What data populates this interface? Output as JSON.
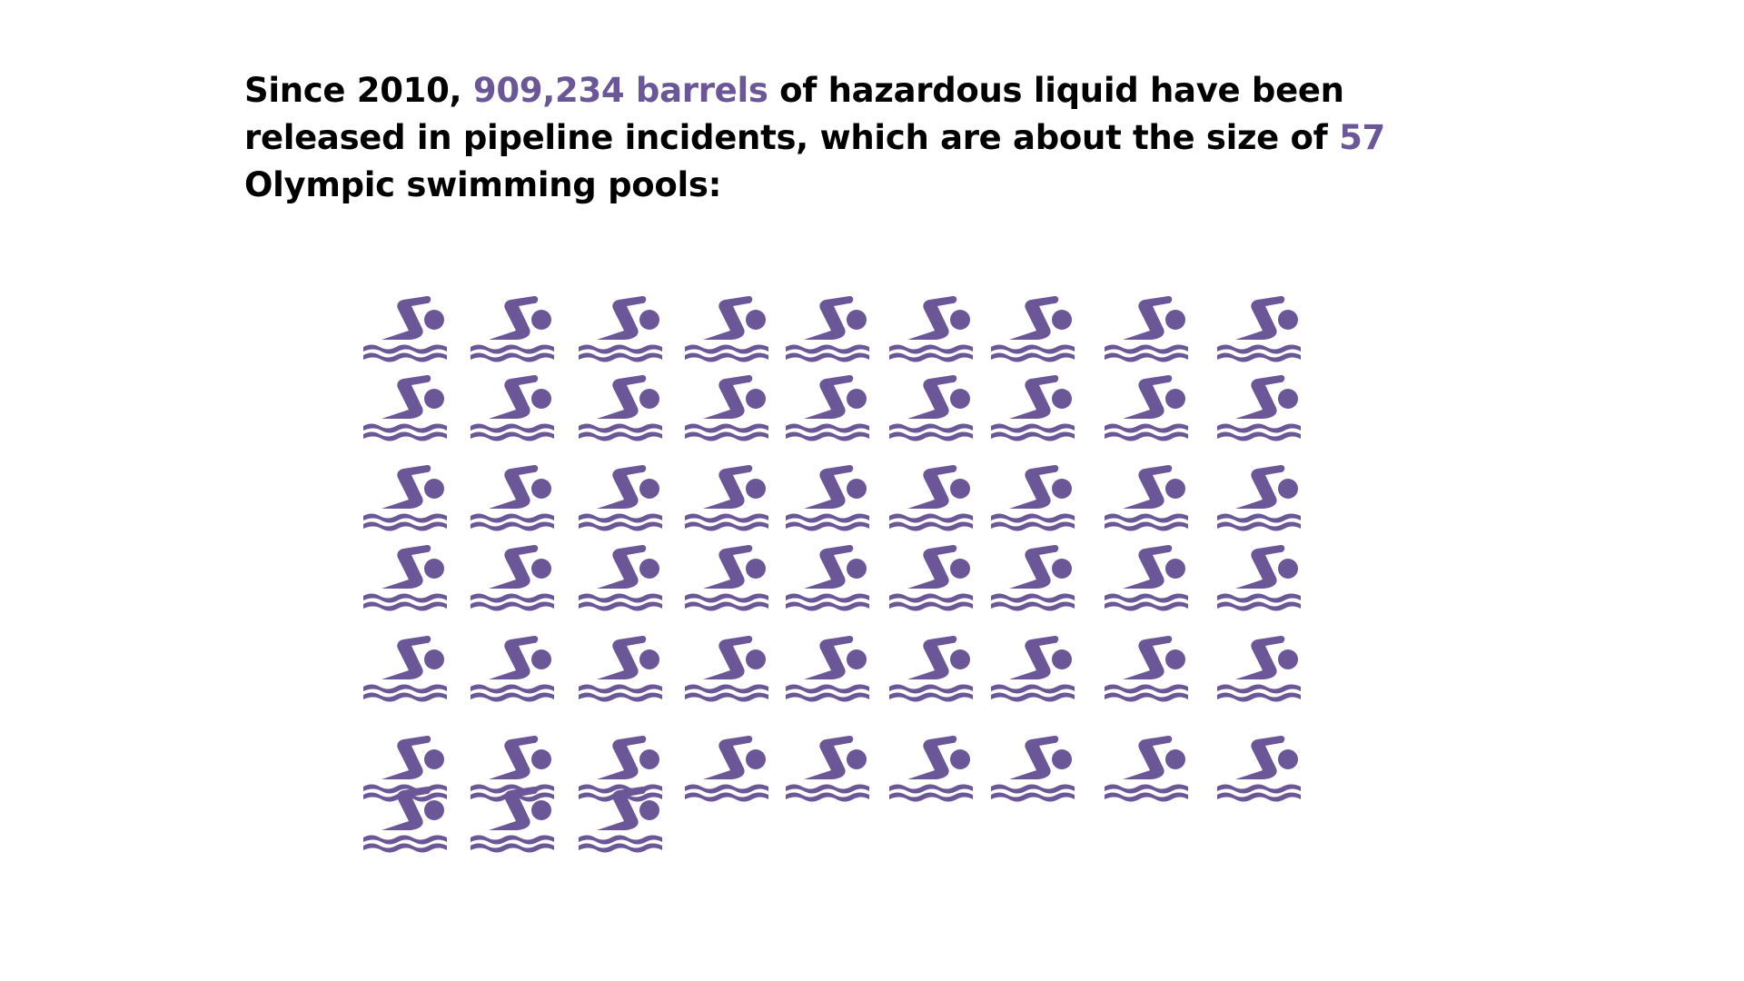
{
  "headline": {
    "part1": "Since 2010, ",
    "highlight1": "909,234 barrels",
    "part2": " of hazardous liquid have been released in pipeline incidents, which are about the size of ",
    "highlight2": "57",
    "part3": " Olympic swimming pools:"
  },
  "colors": {
    "accent": "#6b5797",
    "text": "#000000",
    "background": "#ffffff"
  },
  "chart_data": {
    "type": "pictogram",
    "icon": "swimmer-icon",
    "total_units": 57,
    "unit_meaning": "Olympic swimming pool",
    "columns": 9,
    "value": 909234,
    "value_unit": "barrels",
    "since_year": 2010
  }
}
